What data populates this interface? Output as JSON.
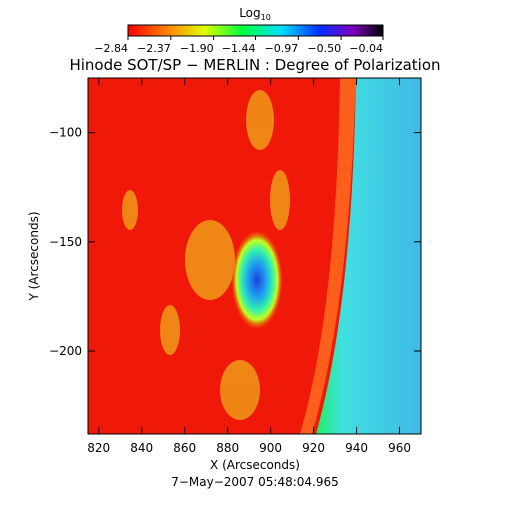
{
  "chart_data": {
    "type": "heatmap",
    "title": "Hinode SOT/SP − MERLIN : Degree of Polarization",
    "xlabel": "X (Arcseconds)",
    "ylabel": "Y (Arcseconds)",
    "date": "7−May−2007 05:48:04.965",
    "xlim": [
      815,
      970
    ],
    "ylim": [
      -238,
      -75
    ],
    "xticks": [
      820,
      840,
      860,
      880,
      900,
      920,
      940,
      960
    ],
    "yticks": [
      {
        "value": -100,
        "label": "−100"
      },
      {
        "value": -150,
        "label": "−150"
      },
      {
        "value": -200,
        "label": "−200"
      }
    ],
    "colorbar": {
      "label": "Log",
      "label_sub": "10",
      "lim": [
        -2.84,
        -0.04
      ],
      "ticks": [
        {
          "value": -2.84,
          "label": "−2.84"
        },
        {
          "value": -2.37,
          "label": "−2.37"
        },
        {
          "value": -1.9,
          "label": "−1.90"
        },
        {
          "value": -1.44,
          "label": "−1.44"
        },
        {
          "value": -0.97,
          "label": "−0.97"
        },
        {
          "value": -0.5,
          "label": "−0.50"
        },
        {
          "value": -0.04,
          "label": "−0.04"
        }
      ]
    }
  }
}
